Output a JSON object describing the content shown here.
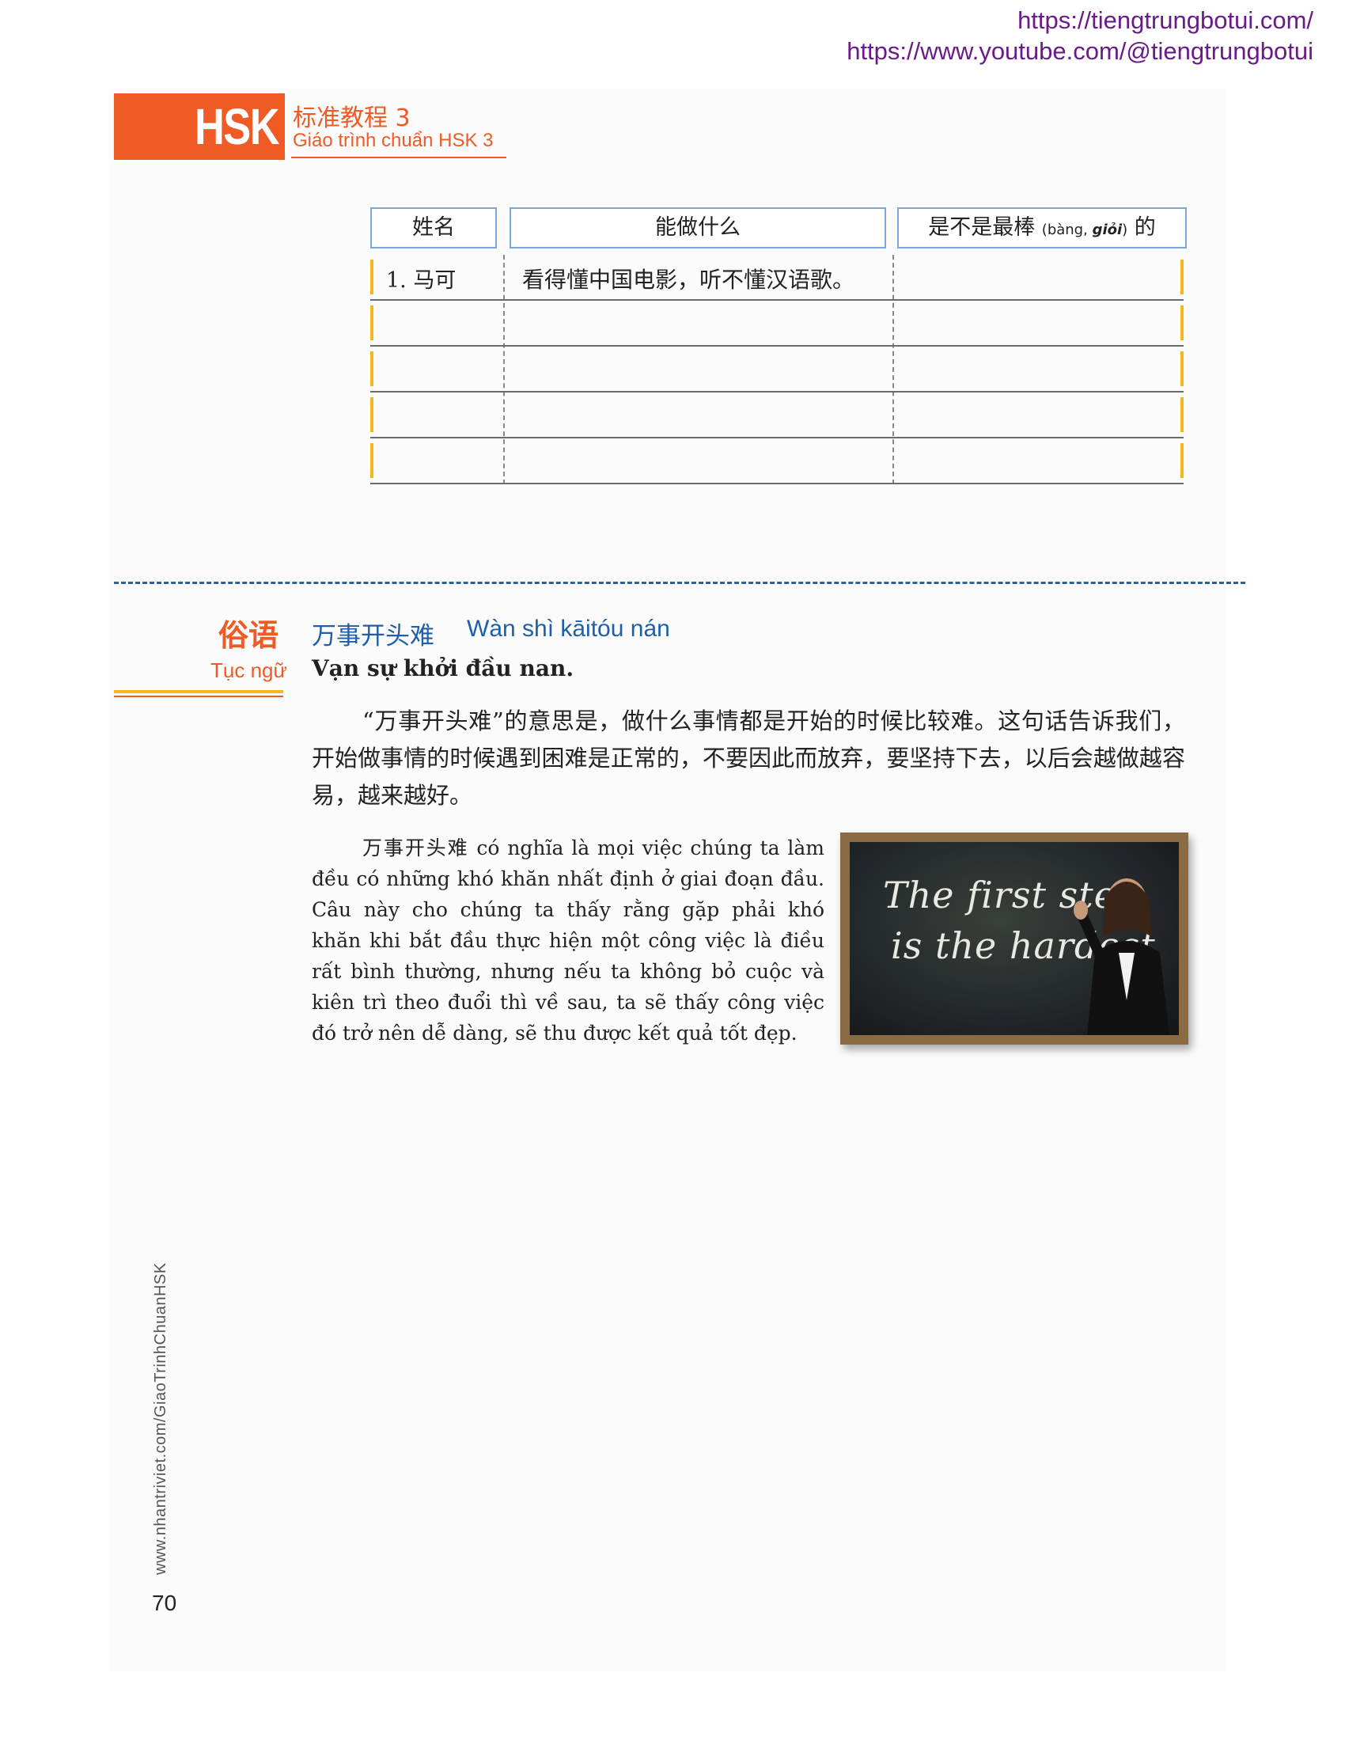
{
  "links": {
    "site": "https://tiengtrungbotui.com/",
    "youtube": "https://www.youtube.com/@tiengtrungbotui"
  },
  "header": {
    "brand": "HSK",
    "title_cn": "标准教程 3",
    "title_vn": "Giáo trình chuẩn HSK 3"
  },
  "table": {
    "col_name": "姓名",
    "col_can": "能做什么",
    "col_best_pre": "是不是最棒",
    "col_best_note_pinyin": "(bàng, ",
    "col_best_note_vn": "giỏi",
    "col_best_note_close": ")",
    "col_best_post": "的",
    "rows": [
      {
        "name": "1. 马可",
        "can": "看得懂中国电影，听不懂汉语歌。"
      },
      {
        "name": "",
        "can": ""
      },
      {
        "name": "",
        "can": ""
      },
      {
        "name": "",
        "can": ""
      },
      {
        "name": "",
        "can": ""
      }
    ]
  },
  "proverb": {
    "label_cn": "俗语",
    "label_vn": "Tục ngữ",
    "title_cn": "万事开头难",
    "title_pinyin": "Wàn shì kāitóu nán",
    "title_vn": "Vạn sự khởi đầu nan.",
    "paragraph_cn": "“万事开头难”的意思是，做什么事情都是开始的时候比较难。这句话告诉我们，开始做事情的时候遇到困难是正常的，不要因此而放弃，要坚持下去，以后会越做越容易，越来越好。",
    "paragraph_vn": "万事开头难 có nghĩa là mọi việc chúng ta làm đều có những khó khăn nhất định ở giai đoạn đầu. Câu này cho chúng ta thấy rằng gặp phải khó khăn khi bắt đầu thực hiện một công việc là điều rất bình thường, nhưng nếu ta không bỏ cuộc và kiên trì theo đuổi thì về sau, ta sẽ thấy công việc đó trở nên dễ dàng, sẽ thu được kết quả tốt đẹp.",
    "image_line1": "The first step",
    "image_line2": "is the hardest"
  },
  "footer": {
    "side_url": "www.nhantriviet.com/GiaoTrinhChuanHSK",
    "page_number": "70"
  },
  "colors": {
    "accent_orange": "#f05a24",
    "accent_yellow": "#f5b81a",
    "accent_blue": "#1e5fa8",
    "link_purple": "#6a1b8a"
  }
}
